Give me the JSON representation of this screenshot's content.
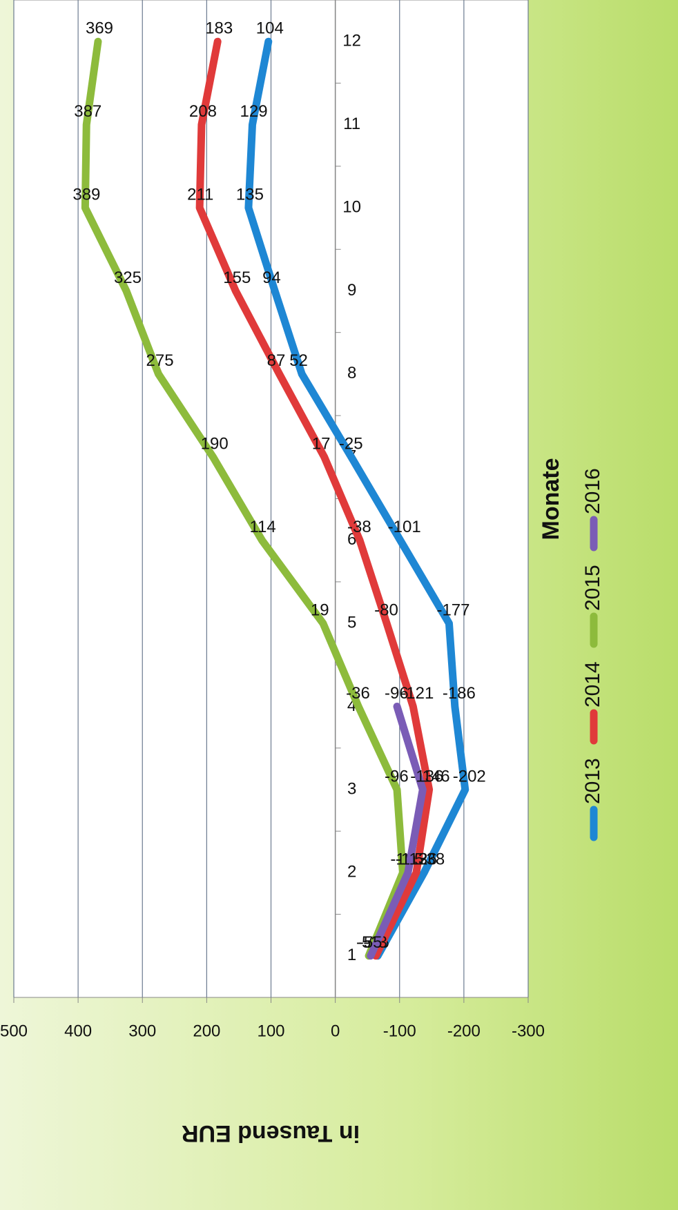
{
  "chart_data": {
    "type": "line",
    "x_title": "Monate",
    "y_title": "in Tausend EUR",
    "categories": [
      1,
      2,
      3,
      4,
      5,
      6,
      7,
      8,
      9,
      10,
      11,
      12
    ],
    "series": [
      {
        "name": "2013",
        "color": "#1e87d4",
        "values": [
          -66,
          -138,
          -202,
          -186,
          -177,
          -101,
          -25,
          52,
          94,
          135,
          129,
          104
        ]
      },
      {
        "name": "2014",
        "color": "#e03a3a",
        "values": [
          -63,
          -126,
          -146,
          -121,
          -80,
          -38,
          17,
          87,
          155,
          211,
          208,
          183
        ]
      },
      {
        "name": "2015",
        "color": "#8dbb3c",
        "values": [
          -52,
          -105,
          -96,
          -36,
          19,
          114,
          190,
          275,
          325,
          389,
          387,
          369
        ]
      },
      {
        "name": "2016",
        "color": "#7a5cb6",
        "values": [
          -55,
          -113,
          -136,
          -96,
          null,
          null,
          null,
          null,
          null,
          null,
          null,
          null
        ]
      }
    ],
    "ylim": [
      -300,
      500
    ],
    "yticks": [
      -300,
      -200,
      -100,
      0,
      100,
      200,
      300,
      400,
      500
    ],
    "grid": true,
    "legend": "bottom"
  }
}
